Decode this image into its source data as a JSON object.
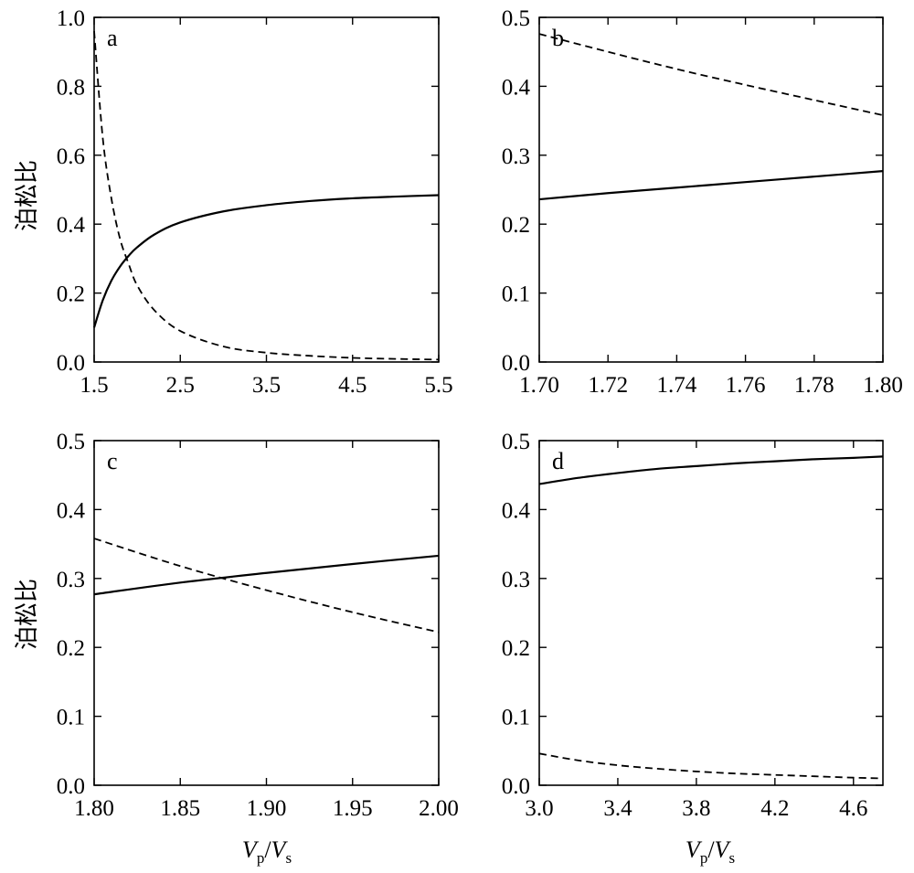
{
  "figure": {
    "y_axis_label": "泊松比",
    "x_axis_label_main_1": "V",
    "x_axis_label_sub_1": "p",
    "x_axis_label_slash": "/",
    "x_axis_label_main_2": "V",
    "x_axis_label_sub_2": "s"
  },
  "chart_data": [
    {
      "type": "line",
      "panel": "a",
      "xlim": [
        1.5,
        5.5
      ],
      "ylim": [
        0.0,
        1.0
      ],
      "xticks": [
        1.5,
        2.5,
        3.5,
        4.5,
        5.5
      ],
      "xtick_labels": [
        "1.5",
        "2.5",
        "3.5",
        "4.5",
        "5.5"
      ],
      "yticks": [
        0.0,
        0.2,
        0.4,
        0.6,
        0.8,
        1.0
      ],
      "ytick_labels": [
        "0.0",
        "0.2",
        "0.4",
        "0.6",
        "0.8",
        "1.0"
      ],
      "ylabel": "泊松比",
      "xlabel": "",
      "grid": false,
      "series": [
        {
          "style": "solid",
          "x": [
            1.5,
            1.6,
            1.7,
            1.8,
            1.9,
            2.0,
            2.2,
            2.5,
            3.0,
            3.5,
            4.0,
            4.5,
            5.0,
            5.5
          ],
          "y": [
            0.1,
            0.179,
            0.236,
            0.277,
            0.308,
            0.333,
            0.37,
            0.405,
            0.437,
            0.455,
            0.467,
            0.475,
            0.48,
            0.484
          ]
        },
        {
          "style": "dashed",
          "x": [
            1.5,
            1.6,
            1.7,
            1.8,
            1.9,
            2.0,
            2.2,
            2.5,
            3.0,
            3.5,
            4.0,
            4.5,
            5.0,
            5.5
          ],
          "y": [
            0.96,
            0.65,
            0.475,
            0.358,
            0.285,
            0.222,
            0.15,
            0.09,
            0.045,
            0.027,
            0.018,
            0.012,
            0.009,
            0.007
          ]
        }
      ]
    },
    {
      "type": "line",
      "panel": "b",
      "xlim": [
        1.7,
        1.8
      ],
      "ylim": [
        0.0,
        0.5
      ],
      "xticks": [
        1.7,
        1.72,
        1.74,
        1.76,
        1.78,
        1.8
      ],
      "xtick_labels": [
        "1.70",
        "1.72",
        "1.74",
        "1.76",
        "1.78",
        "1.80"
      ],
      "yticks": [
        0.0,
        0.1,
        0.2,
        0.3,
        0.4,
        0.5
      ],
      "ytick_labels": [
        "0.0",
        "0.1",
        "0.2",
        "0.3",
        "0.4",
        "0.5"
      ],
      "ylabel": "",
      "xlabel": "",
      "grid": false,
      "series": [
        {
          "style": "solid",
          "x": [
            1.7,
            1.72,
            1.74,
            1.76,
            1.78,
            1.8
          ],
          "y": [
            0.236,
            0.245,
            0.253,
            0.261,
            0.269,
            0.277
          ]
        },
        {
          "style": "dashed",
          "x": [
            1.7,
            1.72,
            1.74,
            1.76,
            1.78,
            1.8
          ],
          "y": [
            0.476,
            0.45,
            0.425,
            0.402,
            0.38,
            0.358
          ]
        }
      ]
    },
    {
      "type": "line",
      "panel": "c",
      "xlim": [
        1.8,
        2.0
      ],
      "ylim": [
        0.0,
        0.5
      ],
      "xticks": [
        1.8,
        1.85,
        1.9,
        1.95,
        2.0
      ],
      "xtick_labels": [
        "1.80",
        "1.85",
        "1.90",
        "1.95",
        "2.00"
      ],
      "yticks": [
        0.0,
        0.1,
        0.2,
        0.3,
        0.4,
        0.5
      ],
      "ytick_labels": [
        "0.0",
        "0.1",
        "0.2",
        "0.3",
        "0.4",
        "0.5"
      ],
      "ylabel": "泊松比",
      "xlabel": "Vp/Vs",
      "grid": false,
      "series": [
        {
          "style": "solid",
          "x": [
            1.8,
            1.85,
            1.9,
            1.95,
            2.0
          ],
          "y": [
            0.277,
            0.294,
            0.308,
            0.321,
            0.333
          ]
        },
        {
          "style": "dashed",
          "x": [
            1.8,
            1.85,
            1.9,
            1.95,
            2.0
          ],
          "y": [
            0.358,
            0.318,
            0.283,
            0.251,
            0.222
          ]
        }
      ]
    },
    {
      "type": "line",
      "panel": "d",
      "xlim": [
        3.0,
        4.75
      ],
      "ylim": [
        0.0,
        0.5
      ],
      "xticks": [
        3.0,
        3.4,
        3.8,
        4.2,
        4.6
      ],
      "xtick_labels": [
        "3.0",
        "3.4",
        "3.8",
        "4.2",
        "4.6"
      ],
      "yticks": [
        0.0,
        0.1,
        0.2,
        0.3,
        0.4,
        0.5
      ],
      "ytick_labels": [
        "0.0",
        "0.1",
        "0.2",
        "0.3",
        "0.4",
        "0.5"
      ],
      "ylabel": "",
      "xlabel": "Vp/Vs",
      "grid": false,
      "series": [
        {
          "style": "solid",
          "x": [
            3.0,
            3.2,
            3.4,
            3.6,
            3.8,
            4.0,
            4.2,
            4.4,
            4.6,
            4.75
          ],
          "y": [
            0.437,
            0.446,
            0.453,
            0.459,
            0.463,
            0.467,
            0.47,
            0.473,
            0.475,
            0.477
          ]
        },
        {
          "style": "dashed",
          "x": [
            3.0,
            3.2,
            3.4,
            3.6,
            3.8,
            4.0,
            4.2,
            4.4,
            4.6,
            4.75
          ],
          "y": [
            0.046,
            0.036,
            0.029,
            0.024,
            0.02,
            0.017,
            0.015,
            0.013,
            0.011,
            0.01
          ]
        }
      ]
    }
  ]
}
